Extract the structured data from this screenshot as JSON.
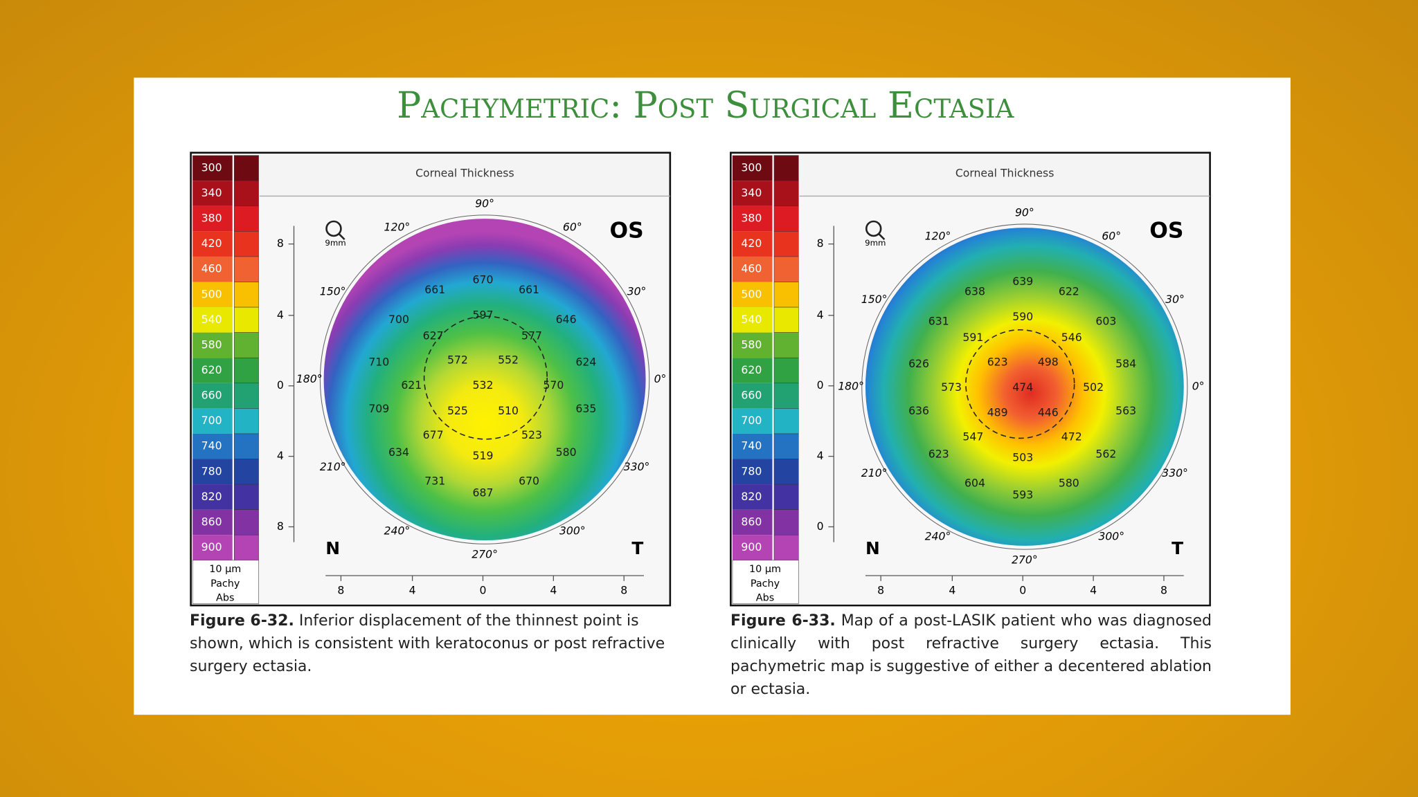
{
  "title": "Pachymetric: Post Surgical Ectasia",
  "figures": [
    {
      "scale_labels": [
        "300",
        "340",
        "380",
        "420",
        "460",
        "500",
        "540",
        "580",
        "620",
        "660",
        "700",
        "740",
        "780",
        "820",
        "860",
        "900"
      ],
      "scale_unit": "10 µm",
      "scale_type": "Pachy",
      "scale_mode": "Abs",
      "panel_title": "Corneal Thickness",
      "eye": "OS",
      "nasal": "N",
      "temporal": "T",
      "zoom": "9mm",
      "angles": [
        "90°",
        "60°",
        "30°",
        "0°",
        "330°",
        "300°",
        "270°",
        "240°",
        "210°",
        "180°",
        "150°",
        "120°"
      ],
      "y_labels": [
        "8",
        "4",
        "0",
        "4",
        "8"
      ],
      "x_labels": [
        "8",
        "4",
        "0",
        "4",
        "8"
      ],
      "map_values": [
        "670",
        "661",
        "661",
        "597",
        "700",
        "646",
        "627",
        "577",
        "710",
        "572",
        "552",
        "624",
        "621",
        "532",
        "570",
        "709",
        "525",
        "510",
        "635",
        "677",
        "523",
        "634",
        "519",
        "580",
        "731",
        "687",
        "670"
      ],
      "caption": {
        "label": "Figure 6-32.",
        "text": "Inferior displacement of the thinnest point is shown, which is consistent with keratoconus or post refractive surgery ectasia."
      }
    },
    {
      "scale_labels": [
        "300",
        "340",
        "380",
        "420",
        "460",
        "500",
        "540",
        "580",
        "620",
        "660",
        "700",
        "740",
        "780",
        "820",
        "860",
        "900"
      ],
      "scale_unit": "10 µm",
      "scale_type": "Pachy",
      "scale_mode": "Abs",
      "panel_title": "Corneal Thickness",
      "eye": "OS",
      "nasal": "N",
      "temporal": "T",
      "zoom": "9mm",
      "angles": [
        "90°",
        "60°",
        "30°",
        "0°",
        "330°",
        "300°",
        "270°",
        "240°",
        "210°",
        "180°",
        "150°",
        "120°"
      ],
      "y_labels": [
        "8",
        "4",
        "0",
        "4",
        "0"
      ],
      "x_labels": [
        "8",
        "4",
        "0",
        "4",
        "8"
      ],
      "map_values": [
        "639",
        "638",
        "622",
        "590",
        "631",
        "603",
        "591",
        "546",
        "626",
        "623",
        "498",
        "584",
        "573",
        "474",
        "502",
        "636",
        "489",
        "446",
        "563",
        "547",
        "472",
        "623",
        "503",
        "562",
        "604",
        "593",
        "580"
      ],
      "caption": {
        "label": "Figure 6-33.",
        "text": "Map of a post-LASIK patient who was diagnosed clinically with post refractive surgery ectasia. This pachymetric map is suggestive of either a decentered ablation or ectasia."
      }
    }
  ]
}
